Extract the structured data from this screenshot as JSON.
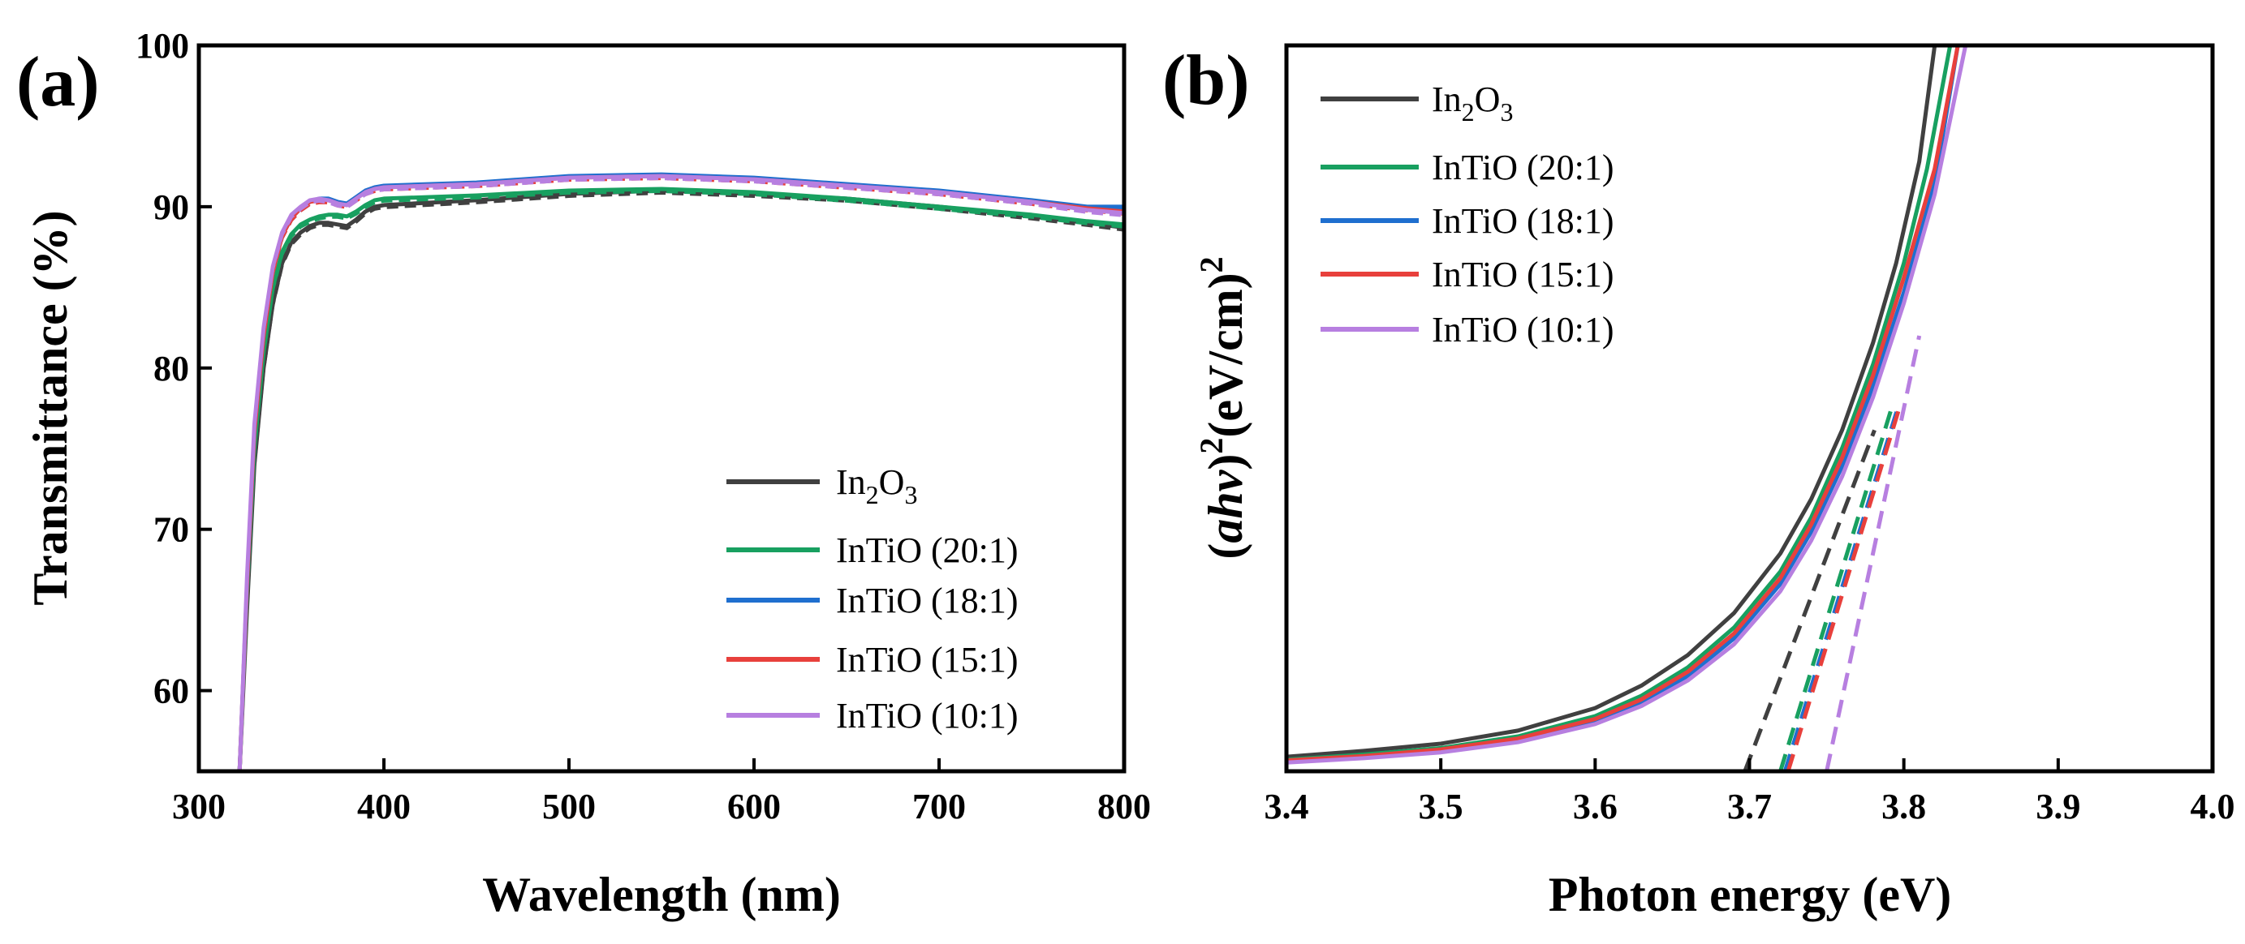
{
  "chart_data": [
    {
      "type": "line",
      "panel_label": "(a)",
      "xlabel": "Wavelength (nm)",
      "ylabel": "Transmittance (%)",
      "xlim": [
        300,
        800
      ],
      "ylim": [
        55,
        100
      ],
      "xticks": [
        "300",
        "400",
        "500",
        "600",
        "700",
        "800"
      ],
      "yticks": [
        "60",
        "70",
        "80",
        "90",
        "100"
      ],
      "legend_position": "bottom-right",
      "series": [
        {
          "name": "In2O3",
          "label_base": "In",
          "label_sub1": "2",
          "label_mid": "O",
          "label_sub2": "3",
          "color": "#404040",
          "x": [
            322,
            326,
            330,
            335,
            340,
            345,
            350,
            355,
            360,
            365,
            370,
            375,
            380,
            385,
            390,
            395,
            400,
            450,
            500,
            550,
            600,
            650,
            700,
            750,
            780,
            800
          ],
          "y": [
            55,
            65,
            74,
            80,
            84,
            86.5,
            87.8,
            88.4,
            88.8,
            89.0,
            89.0,
            88.9,
            88.8,
            89.2,
            89.7,
            90.0,
            90.1,
            90.4,
            90.8,
            91.0,
            90.8,
            90.5,
            90.0,
            89.4,
            89.0,
            88.7
          ]
        },
        {
          "name": "InTiO (20:1)",
          "color": "#18a060",
          "x": [
            322,
            326,
            330,
            335,
            340,
            345,
            350,
            355,
            360,
            365,
            370,
            375,
            380,
            385,
            390,
            395,
            400,
            450,
            500,
            550,
            600,
            650,
            700,
            750,
            780,
            800
          ],
          "y": [
            55,
            66,
            75,
            81,
            85,
            87.2,
            88.3,
            88.9,
            89.2,
            89.4,
            89.5,
            89.5,
            89.4,
            89.7,
            90.1,
            90.4,
            90.5,
            90.7,
            91.0,
            91.1,
            90.9,
            90.5,
            90.0,
            89.5,
            89.1,
            88.9
          ]
        },
        {
          "name": "InTiO (18:1)",
          "color": "#1f6fcf",
          "x": [
            322,
            326,
            330,
            335,
            340,
            345,
            350,
            355,
            360,
            365,
            370,
            375,
            380,
            385,
            390,
            395,
            400,
            450,
            500,
            550,
            600,
            650,
            700,
            750,
            780,
            800
          ],
          "y": [
            55,
            66.5,
            76,
            82,
            86,
            88.2,
            89.3,
            89.9,
            90.3,
            90.5,
            90.5,
            90.3,
            90.2,
            90.6,
            91.0,
            91.2,
            91.3,
            91.5,
            91.9,
            92.0,
            91.8,
            91.4,
            91.0,
            90.4,
            90.0,
            90.0
          ]
        },
        {
          "name": "InTiO (15:1)",
          "color": "#e8403c",
          "x": [
            322,
            326,
            330,
            335,
            340,
            345,
            350,
            355,
            360,
            365,
            370,
            375,
            380,
            385,
            390,
            395,
            400,
            450,
            500,
            550,
            600,
            650,
            700,
            750,
            780,
            800
          ],
          "y": [
            55,
            66.5,
            76,
            82,
            86,
            88.2,
            89.3,
            89.9,
            90.3,
            90.4,
            90.4,
            90.2,
            90.1,
            90.5,
            90.9,
            91.1,
            91.2,
            91.4,
            91.8,
            91.9,
            91.7,
            91.3,
            90.9,
            90.3,
            89.9,
            89.7
          ]
        },
        {
          "name": "InTiO (10:1)",
          "color": "#b77fe0",
          "x": [
            322,
            326,
            330,
            335,
            340,
            345,
            350,
            355,
            360,
            365,
            370,
            375,
            380,
            385,
            390,
            395,
            400,
            450,
            500,
            550,
            600,
            650,
            700,
            750,
            780,
            800
          ],
          "y": [
            55,
            67,
            76.5,
            82.5,
            86.3,
            88.4,
            89.5,
            90.0,
            90.4,
            90.5,
            90.4,
            90.2,
            90.1,
            90.5,
            90.9,
            91.1,
            91.2,
            91.4,
            91.8,
            91.9,
            91.7,
            91.3,
            90.9,
            90.3,
            89.8,
            89.6
          ]
        }
      ]
    },
    {
      "type": "line",
      "panel_label": "(b)",
      "xlabel": "Photon energy (eV)",
      "ylabel_prefix": "(",
      "ylabel_italic": "ahv",
      "ylabel_mid": ")",
      "ylabel_sup1": "2",
      "ylabel_unit": "(eV/cm)",
      "ylabel_sup2": "2",
      "xlim": [
        3.4,
        4.0
      ],
      "ylim": [
        0,
        100
      ],
      "xticks": [
        "3.4",
        "3.5",
        "3.6",
        "3.7",
        "3.8",
        "3.9",
        "4.0"
      ],
      "yticks": [],
      "legend_position": "top-left",
      "series": [
        {
          "name": "In2O3",
          "label_base": "In",
          "label_sub1": "2",
          "label_mid": "O",
          "label_sub2": "3",
          "color": "#404040",
          "x": [
            3.4,
            3.45,
            3.5,
            3.55,
            3.6,
            3.63,
            3.66,
            3.69,
            3.72,
            3.74,
            3.76,
            3.78,
            3.795,
            3.81,
            3.82
          ],
          "y": [
            2.0,
            2.8,
            3.8,
            5.6,
            8.7,
            11.8,
            16.0,
            21.8,
            30.0,
            37.5,
            47.0,
            59.0,
            70.0,
            84.0,
            100
          ],
          "fit_x": [
            3.697,
            3.781
          ],
          "fit_y": [
            0,
            47
          ]
        },
        {
          "name": "InTiO (20:1)",
          "color": "#18a060",
          "x": [
            3.4,
            3.45,
            3.5,
            3.55,
            3.6,
            3.63,
            3.66,
            3.69,
            3.72,
            3.74,
            3.76,
            3.78,
            3.8,
            3.815,
            3.83
          ],
          "y": [
            1.6,
            2.3,
            3.2,
            4.8,
            7.6,
            10.4,
            14.3,
            19.8,
            27.5,
            35.0,
            44.5,
            56.0,
            70.0,
            83.0,
            100
          ],
          "fit_x": [
            3.72,
            3.792
          ],
          "fit_y": [
            0,
            50
          ]
        },
        {
          "name": "InTiO (18:1)",
          "color": "#1f6fcf",
          "x": [
            3.4,
            3.45,
            3.5,
            3.55,
            3.6,
            3.63,
            3.66,
            3.69,
            3.72,
            3.74,
            3.76,
            3.78,
            3.8,
            3.82,
            3.835
          ],
          "y": [
            1.4,
            2.0,
            2.8,
            4.3,
            6.9,
            9.5,
            13.1,
            18.3,
            25.8,
            33.0,
            42.0,
            53.0,
            66.0,
            81.0,
            100
          ],
          "fit_x": [
            3.723,
            3.796
          ],
          "fit_y": [
            0,
            50
          ]
        },
        {
          "name": "InTiO (15:1)",
          "color": "#e8403c",
          "x": [
            3.4,
            3.45,
            3.5,
            3.55,
            3.6,
            3.63,
            3.66,
            3.69,
            3.72,
            3.74,
            3.76,
            3.78,
            3.8,
            3.82,
            3.835
          ],
          "y": [
            1.5,
            2.1,
            3.0,
            4.5,
            7.2,
            9.9,
            13.7,
            19.0,
            26.6,
            34.0,
            43.2,
            54.5,
            68.0,
            83.0,
            100
          ],
          "fit_x": [
            3.725,
            3.797
          ],
          "fit_y": [
            0,
            50
          ]
        },
        {
          "name": "InTiO (10:1)",
          "color": "#b77fe0",
          "x": [
            3.4,
            3.45,
            3.5,
            3.55,
            3.6,
            3.63,
            3.66,
            3.69,
            3.72,
            3.74,
            3.76,
            3.78,
            3.8,
            3.82,
            3.84
          ],
          "y": [
            1.2,
            1.8,
            2.6,
            4.0,
            6.5,
            9.0,
            12.5,
            17.5,
            24.8,
            31.8,
            40.6,
            51.5,
            64.5,
            79.5,
            100
          ],
          "fit_x": [
            3.75,
            3.81
          ],
          "fit_y": [
            0,
            60
          ]
        }
      ]
    }
  ]
}
